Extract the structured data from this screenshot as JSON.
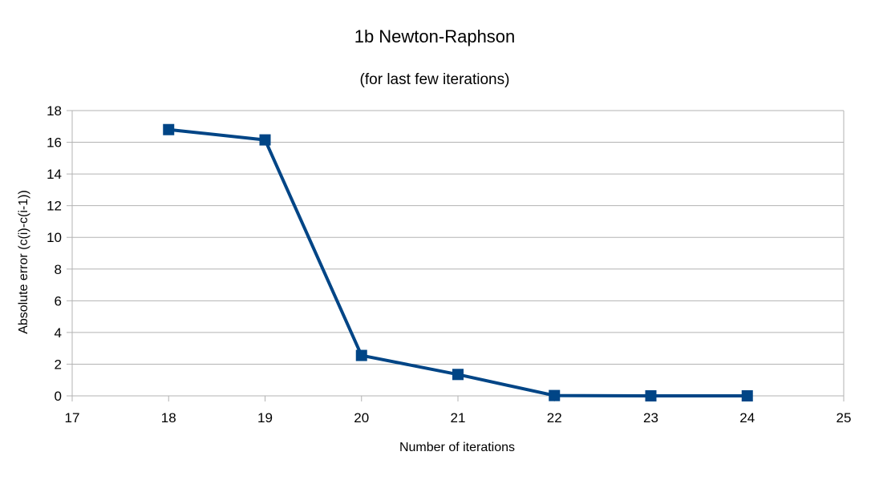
{
  "chart_data": {
    "type": "line",
    "title": "1b Newton-Raphson",
    "subtitle": "(for last few iterations)",
    "xlabel": "Number of iterations",
    "ylabel": "Absolute error (c(i)-c(i-1))",
    "xlim": [
      17,
      25
    ],
    "ylim": [
      0,
      18
    ],
    "xticks": [
      17,
      18,
      19,
      20,
      21,
      22,
      23,
      24,
      25
    ],
    "yticks": [
      0,
      2,
      4,
      6,
      8,
      10,
      12,
      14,
      16,
      18
    ],
    "grid": true,
    "legend": "none",
    "series": [
      {
        "x": [
          18,
          19,
          20,
          21,
          22,
          23,
          24
        ],
        "y": [
          16.8,
          16.15,
          2.55,
          1.35,
          0.02,
          0.0,
          0.0
        ],
        "color": "#004586",
        "marker": "square"
      }
    ]
  }
}
